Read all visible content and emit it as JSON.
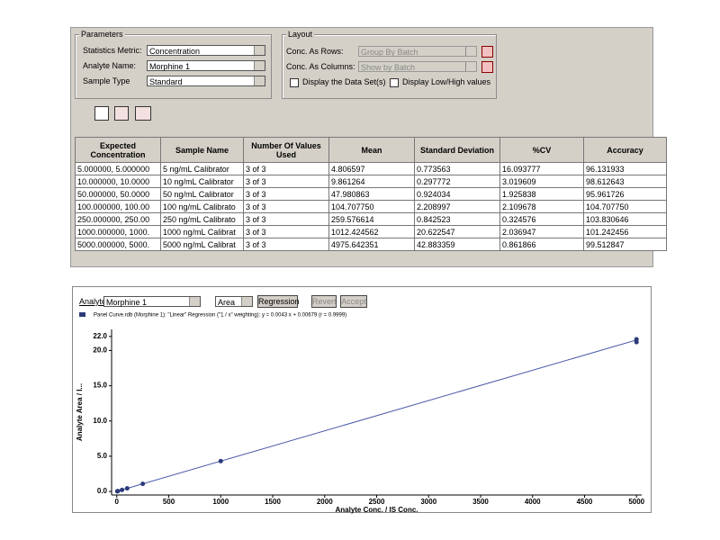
{
  "parameters": {
    "title": "Parameters",
    "fields": [
      {
        "label": "Statistics Metric:",
        "value": "Concentration"
      },
      {
        "label": "Analyte Name:",
        "value": "Morphine 1"
      },
      {
        "label": "Sample Type",
        "value": "Standard"
      }
    ]
  },
  "layout": {
    "title": "Layout",
    "fields": [
      {
        "label": "Conc. As Rows:",
        "value": "Group By Batch"
      },
      {
        "label": "Conc. As Columns:",
        "value": "Show by Batch"
      }
    ],
    "checkboxes": [
      "Display the Data Set(s)",
      "Display Low/High values"
    ]
  },
  "table": {
    "headers": [
      "Expected Concentration",
      "Sample Name",
      "Number Of Values Used",
      "Mean",
      "Standard Deviation",
      "%CV",
      "Accuracy"
    ],
    "rows": [
      [
        "5.000000, 5.000000",
        "5 ng/mL Calibrator",
        "3 of 3",
        "4.806597",
        "0.773563",
        "16.093777",
        "96.131933"
      ],
      [
        "10.000000, 10.0000",
        "10 ng/mL Calibrator",
        "3 of 3",
        "9.861264",
        "0.297772",
        "3.019609",
        "98.612643"
      ],
      [
        "50.000000, 50.0000",
        "50 ng/mL Calibrator",
        "3 of 3",
        "47.980863",
        "0.924034",
        "1.925838",
        "95.961726"
      ],
      [
        "100.000000, 100.00",
        "100 ng/mL Calibrato",
        "3 of 3",
        "104.707750",
        "2.208997",
        "2.109678",
        "104.707750"
      ],
      [
        "250.000000, 250.00",
        "250 ng/mL Calibrato",
        "3 of 3",
        "259.576614",
        "0.842523",
        "0.324576",
        "103.830646"
      ],
      [
        "1000.000000, 1000.",
        "1000 ng/mL Calibrat",
        "3 of 3",
        "1012.424562",
        "20.622547",
        "2.036947",
        "101.242456"
      ],
      [
        "5000.000000, 5000.",
        "5000 ng/mL Calibrat",
        "3 of 3",
        "4975.642351",
        "42.883359",
        "0.861866",
        "99.512847"
      ]
    ]
  },
  "controls": {
    "analyte_label": "Analyte:",
    "analyte": "Morphine 1",
    "measure": "Area",
    "buttons": [
      "Regression",
      "Revert",
      "Accept"
    ]
  },
  "chart": {
    "type": "scatter",
    "legend": "Panel Curve.rdb (Morphine 1): \"Linear\" Regression (\"1 / x\" weighting): y = 0.0043 x + 0.00679 (r = 0.9999)",
    "x_label": "Analyte Conc. / IS Conc.",
    "y_label": "Analyte Area / I...",
    "xlim": [
      -50,
      5050
    ],
    "ylim": [
      -0.5,
      23
    ],
    "xticks": [
      0,
      500,
      1000,
      1500,
      2000,
      2500,
      3000,
      3500,
      4000,
      4500,
      5000
    ],
    "yticks": [
      {
        "value": 0,
        "label": "0.0"
      },
      {
        "value": 5,
        "label": "5.0"
      },
      {
        "value": 10,
        "label": "10.0"
      },
      {
        "value": 15,
        "label": "15.0"
      },
      {
        "value": 20,
        "label": "20.0"
      },
      {
        "value": 22,
        "label": "22.0"
      }
    ],
    "points": {
      "color": "#2b3a7a",
      "x": [
        5,
        10,
        50,
        100,
        250,
        1000,
        5000,
        5000
      ],
      "values": [
        0.03,
        0.05,
        0.22,
        0.44,
        1.08,
        4.3,
        21.2,
        21.6
      ]
    },
    "line": {
      "color": "#4a5aa8",
      "x": [
        0,
        5000
      ],
      "values": [
        0.00679,
        21.5
      ]
    }
  }
}
